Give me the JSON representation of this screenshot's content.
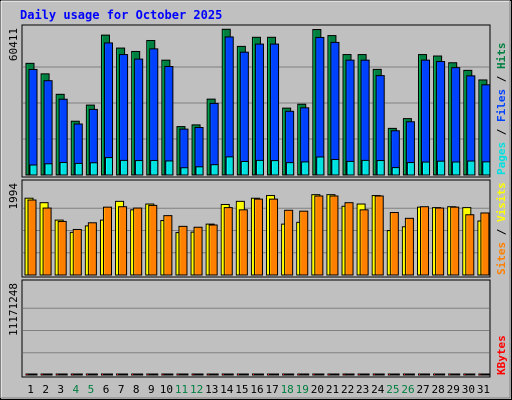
{
  "chart_data": {
    "type": "bar",
    "title": "Daily usage for October 2025",
    "categories": [
      "1",
      "2",
      "3",
      "4",
      "5",
      "6",
      "7",
      "8",
      "9",
      "10",
      "11",
      "12",
      "13",
      "14",
      "15",
      "16",
      "17",
      "18",
      "19",
      "20",
      "21",
      "22",
      "23",
      "24",
      "25",
      "26",
      "27",
      "28",
      "29",
      "30",
      "31"
    ],
    "weekend_days": [
      4,
      5,
      11,
      12,
      18,
      19,
      25,
      26
    ],
    "panels": [
      {
        "id": "pages-files-hits",
        "max_label": "60411",
        "ymax": 60411,
        "legend": [
          {
            "text": "Pages",
            "color": "#00e0e0"
          },
          {
            "text": " / ",
            "color": "#000000"
          },
          {
            "text": "Files",
            "color": "#0040ff"
          },
          {
            "text": " / ",
            "color": "#000000"
          },
          {
            "text": "Hits",
            "color": "#008040"
          }
        ],
        "series": [
          {
            "name": "Hits",
            "color": "#008040",
            "values": [
              46840,
              42440,
              33850,
              22560,
              29330,
              58680,
              53250,
              51820,
              56430,
              48180,
              20310,
              21030,
              31830,
              61140,
              53960,
              57770,
              57770,
              28060,
              29690,
              61030,
              58490,
              50530,
              50530,
              44310,
              19560,
              23660,
              50530,
              49920,
              47100,
              43900,
              39880
            ]
          },
          {
            "name": "Files",
            "color": "#0040ff",
            "values": [
              44280,
              39570,
              31790,
              21390,
              27520,
              55410,
              50530,
              48620,
              52920,
              45510,
              19250,
              19930,
              30050,
              57910,
              51520,
              54920,
              54920,
              26730,
              28190,
              57700,
              55640,
              48180,
              48180,
              41700,
              18560,
              22340,
              48180,
              47620,
              45030,
              41600,
              37840
            ]
          },
          {
            "name": "Pages",
            "color": "#00e0e0",
            "values": [
              4200,
              4700,
              5250,
              4860,
              5130,
              7300,
              6130,
              6060,
              6100,
              5900,
              3040,
              3430,
              4330,
              7600,
              5670,
              6130,
              6040,
              5190,
              5490,
              7560,
              6520,
              5700,
              6130,
              6070,
              3110,
              5220,
              5420,
              5800,
              5460,
              5860,
              5520
            ]
          }
        ]
      },
      {
        "id": "sites-visits",
        "max_label": "1994",
        "ymax": 1994,
        "legend": [
          {
            "text": "Sites",
            "color": "#ff8000"
          },
          {
            "text": " / ",
            "color": "#000000"
          },
          {
            "text": "Visits",
            "color": "#ffff00"
          }
        ],
        "series": [
          {
            "name": "Visits",
            "color": "#ffff00",
            "values": [
              1720,
              1620,
              1230,
              955,
              1100,
              1230,
              1650,
              1460,
              1590,
              1220,
              950,
              960,
              1140,
              1580,
              1650,
              1720,
              1780,
              1140,
              1180,
              1800,
              1800,
              1540,
              1590,
              1780,
              995,
              1080,
              1520,
              1510,
              1530,
              1510,
              1210
            ]
          },
          {
            "name": "Sites",
            "color": "#ff8000",
            "values": [
              1680,
              1500,
              1200,
              1020,
              1170,
              1520,
              1530,
              1500,
              1560,
              1330,
              1090,
              1070,
              1120,
              1510,
              1460,
              1700,
              1700,
              1450,
              1430,
              1770,
              1770,
              1620,
              1460,
              1770,
              1400,
              1270,
              1530,
              1500,
              1520,
              1350,
              1390
            ]
          }
        ]
      },
      {
        "id": "kbytes",
        "max_label": "11171248",
        "ymax": 11171248,
        "legend": [
          {
            "text": "KBytes",
            "color": "#ff0000"
          }
        ],
        "series": [
          {
            "name": "KBytes",
            "color": "#ff0000",
            "values": [
              6520,
              5510,
              4520,
              3160,
              3390,
              7650,
              6970,
              6200,
              8030,
              6880,
              2820,
              2860,
              4090,
              11171,
              6980,
              7760,
              6680,
              2910,
              3390,
              7510,
              6130,
              5560,
              6090,
              4880,
              2180,
              2820,
              6480,
              7100,
              6580,
              6590,
              5880
            ]
          }
        ]
      }
    ]
  }
}
